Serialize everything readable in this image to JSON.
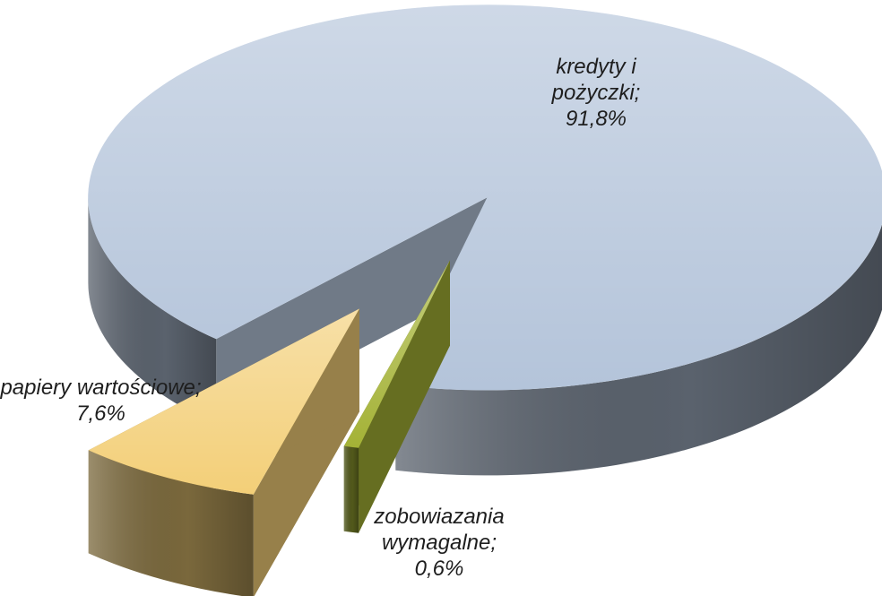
{
  "chart_data": {
    "type": "pie3d",
    "categories": [
      "kredyty i pożyczki;",
      "zobowiazania wymagalne;",
      "papiery wartościowe;"
    ],
    "values": [
      91.8,
      0.6,
      7.6
    ],
    "value_labels": [
      "91,8%",
      "0,6%",
      "7,6%"
    ],
    "colors": [
      "#b4c4da",
      "#a4b236",
      "#f3cf78"
    ]
  }
}
